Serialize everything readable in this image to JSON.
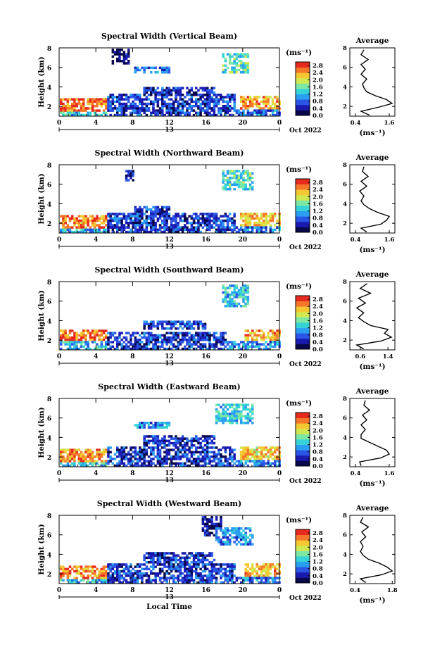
{
  "chart_data": [
    {
      "type": "heatmap",
      "panel_id": "vertical",
      "title": "Spectral Width (Vertical Beam)",
      "ylabel": "Height (km)",
      "y_ticks": [
        "2",
        "4",
        "6",
        "8"
      ],
      "x_ticks": [
        "0",
        "4",
        "8",
        "12",
        "16",
        "20",
        "0"
      ],
      "xlim": [
        0,
        24
      ],
      "ylim": [
        1,
        8
      ],
      "date_marker": "13",
      "date_label": "Oct 2022",
      "colorbar": {
        "unit": "(ms⁻¹)",
        "tick_labels": [
          "2.8",
          "2.4",
          "2.0",
          "1.6",
          "1.2",
          "0.8",
          "0.4",
          "0.0"
        ],
        "range": [
          0,
          3.0
        ],
        "colors": [
          "#08084a",
          "#1a1ab0",
          "#2a55e6",
          "#2a9ef0",
          "#35d2d8",
          "#7de8a4",
          "#d2e850",
          "#f5c832",
          "#f5782a",
          "#e82a1e"
        ]
      },
      "field_regions": [
        {
          "t0": 0,
          "t1": 5.5,
          "h0": 1.5,
          "h1": 3.0,
          "v": 2.6
        },
        {
          "t0": 0,
          "t1": 5,
          "h0": 1.0,
          "h1": 1.6,
          "v": 1.3
        },
        {
          "t0": 5,
          "t1": 19,
          "h0": 1.0,
          "h1": 3.5,
          "v": 0.6
        },
        {
          "t0": 19,
          "t1": 24,
          "h0": 1.0,
          "h1": 1.8,
          "v": 0.8
        },
        {
          "t0": 19.5,
          "t1": 24,
          "h0": 1.8,
          "h1": 3.2,
          "v": 2.4
        },
        {
          "t0": 9,
          "t1": 17,
          "h0": 3.3,
          "h1": 4.2,
          "v": 0.5
        },
        {
          "t0": 5.5,
          "t1": 7.5,
          "h0": 6.5,
          "h1": 8.0,
          "v": 0.25
        },
        {
          "t0": 17.5,
          "t1": 20.5,
          "h0": 5.5,
          "h1": 7.5,
          "v": 1.5
        },
        {
          "t0": 8,
          "t1": 12,
          "h0": 5.5,
          "h1": 6.2,
          "v": 0.8
        }
      ],
      "average_profile": {
        "title": "Average",
        "xlabel": "(ms⁻¹)",
        "x_ticks": [
          "0.4",
          "1.6"
        ],
        "xlim": [
          0.2,
          1.8
        ],
        "y_ticks": [
          "2",
          "4",
          "6",
          "8"
        ],
        "ylim": [
          1,
          8
        ],
        "x": [
          0.9,
          0.6,
          1.2,
          1.7,
          1.5,
          1.1,
          0.8,
          0.7,
          0.65,
          0.8,
          0.6,
          0.75,
          0.6,
          0.85,
          0.6,
          0.7
        ],
        "y": [
          1.1,
          1.5,
          1.9,
          2.3,
          2.7,
          3.1,
          3.5,
          3.9,
          4.3,
          4.8,
          5.3,
          5.8,
          6.3,
          6.8,
          7.3,
          7.8
        ]
      }
    },
    {
      "type": "heatmap",
      "panel_id": "northward",
      "title": "Spectral Width (Northward Beam)",
      "ylabel": "Height (km)",
      "y_ticks": [
        "2",
        "4",
        "6",
        "8"
      ],
      "x_ticks": [
        "0",
        "4",
        "8",
        "12",
        "16",
        "20",
        "0"
      ],
      "xlim": [
        0,
        24
      ],
      "ylim": [
        1,
        8
      ],
      "date_marker": "13",
      "date_label": "Oct 2022",
      "colorbar": {
        "unit": "(ms⁻¹)",
        "tick_labels": [
          "2.8",
          "2.4",
          "2.0",
          "1.6",
          "1.2",
          "0.8",
          "0.4",
          "0.0"
        ],
        "range": [
          0,
          3.0
        ],
        "colors": [
          "#08084a",
          "#1a1ab0",
          "#2a55e6",
          "#2a9ef0",
          "#35d2d8",
          "#7de8a4",
          "#d2e850",
          "#f5c832",
          "#f5782a",
          "#e82a1e"
        ]
      },
      "field_regions": [
        {
          "t0": 0,
          "t1": 5,
          "h0": 1.5,
          "h1": 3.0,
          "v": 2.5
        },
        {
          "t0": 0,
          "t1": 5,
          "h0": 1.0,
          "h1": 1.6,
          "v": 1.2
        },
        {
          "t0": 5,
          "t1": 19,
          "h0": 1.0,
          "h1": 3.3,
          "v": 0.6
        },
        {
          "t0": 19,
          "t1": 24,
          "h0": 1.0,
          "h1": 1.8,
          "v": 0.9
        },
        {
          "t0": 19.5,
          "t1": 24,
          "h0": 1.8,
          "h1": 3.2,
          "v": 2.3
        },
        {
          "t0": 8,
          "t1": 12,
          "h0": 3.3,
          "h1": 4.0,
          "v": 0.6
        },
        {
          "t0": 17.5,
          "t1": 21,
          "h0": 5.5,
          "h1": 7.5,
          "v": 1.4
        },
        {
          "t0": 7,
          "t1": 8,
          "h0": 6.5,
          "h1": 7.5,
          "v": 0.3
        }
      ],
      "average_profile": {
        "title": "Average",
        "xlabel": "(ms⁻¹)",
        "x_ticks": [
          "0.4",
          "1.6"
        ],
        "xlim": [
          0.2,
          1.8
        ],
        "y_ticks": [
          "2",
          "4",
          "6",
          "8"
        ],
        "ylim": [
          1,
          8
        ],
        "x": [
          0.8,
          0.6,
          1.3,
          1.5,
          1.6,
          1.2,
          0.9,
          0.7,
          0.6,
          0.7,
          0.55,
          0.8,
          0.6,
          0.85,
          0.65,
          0.7
        ],
        "y": [
          1.1,
          1.5,
          1.9,
          2.3,
          2.7,
          3.1,
          3.5,
          3.9,
          4.3,
          4.8,
          5.3,
          5.8,
          6.3,
          6.8,
          7.3,
          7.8
        ]
      }
    },
    {
      "type": "heatmap",
      "panel_id": "southward",
      "title": "Spectral Width (Southward Beam)",
      "ylabel": "Height (km)",
      "y_ticks": [
        "2",
        "4",
        "6",
        "8"
      ],
      "x_ticks": [
        "0",
        "4",
        "8",
        "12",
        "16",
        "20",
        "0"
      ],
      "xlim": [
        0,
        24
      ],
      "ylim": [
        1,
        8
      ],
      "date_marker": "13",
      "date_label": "Oct 2022",
      "colorbar": {
        "unit": "(ms⁻¹)",
        "tick_labels": [
          "2.8",
          "2.4",
          "2.0",
          "1.6",
          "1.2",
          "0.8",
          "0.4",
          "0.0"
        ],
        "range": [
          0,
          3.0
        ],
        "colors": [
          "#08084a",
          "#1a1ab0",
          "#2a55e6",
          "#2a9ef0",
          "#35d2d8",
          "#7de8a4",
          "#d2e850",
          "#f5c832",
          "#f5782a",
          "#e82a1e"
        ]
      },
      "field_regions": [
        {
          "t0": 0,
          "t1": 5,
          "h0": 2.0,
          "h1": 3.2,
          "v": 2.6
        },
        {
          "t0": 0,
          "t1": 5,
          "h0": 1.0,
          "h1": 2.0,
          "v": 1.2
        },
        {
          "t0": 5,
          "t1": 18,
          "h0": 1.0,
          "h1": 3.0,
          "v": 0.6
        },
        {
          "t0": 18,
          "t1": 24,
          "h0": 1.0,
          "h1": 2.0,
          "v": 1.0
        },
        {
          "t0": 20,
          "t1": 24,
          "h0": 2.0,
          "h1": 3.2,
          "v": 2.4
        },
        {
          "t0": 9,
          "t1": 16,
          "h0": 3.2,
          "h1": 4.2,
          "v": 0.6
        },
        {
          "t0": 17.5,
          "t1": 20.5,
          "h0": 5.5,
          "h1": 7.8,
          "v": 1.3
        }
      ],
      "average_profile": {
        "title": "Average",
        "xlabel": "(ms⁻¹)",
        "x_ticks": [
          "0.6",
          "1.4"
        ],
        "xlim": [
          0.3,
          1.6
        ],
        "y_ticks": [
          "2",
          "4",
          "6",
          "8"
        ],
        "ylim": [
          1,
          8
        ],
        "x": [
          0.7,
          0.5,
          1.2,
          1.5,
          1.3,
          1.4,
          0.9,
          0.7,
          0.55,
          0.7,
          0.5,
          0.75,
          0.55,
          0.9,
          0.6,
          0.8
        ],
        "y": [
          1.1,
          1.5,
          1.9,
          2.3,
          2.7,
          3.1,
          3.5,
          3.9,
          4.3,
          4.8,
          5.3,
          5.8,
          6.3,
          6.8,
          7.3,
          7.8
        ]
      }
    },
    {
      "type": "heatmap",
      "panel_id": "eastward",
      "title": "Spectral Width (Eastward Beam)",
      "ylabel": "Height (km)",
      "y_ticks": [
        "2",
        "4",
        "6",
        "8"
      ],
      "x_ticks": [
        "0",
        "4",
        "8",
        "12",
        "16",
        "20",
        "0"
      ],
      "xlim": [
        0,
        24
      ],
      "ylim": [
        1,
        8
      ],
      "date_marker": "13",
      "date_label": "Oct 2022",
      "colorbar": {
        "unit": "(ms⁻¹)",
        "tick_labels": [
          "2.8",
          "2.4",
          "2.0",
          "1.6",
          "1.2",
          "0.8",
          "0.4",
          "0.0"
        ],
        "range": [
          0,
          3.0
        ],
        "colors": [
          "#08084a",
          "#1a1ab0",
          "#2a55e6",
          "#2a9ef0",
          "#35d2d8",
          "#7de8a4",
          "#d2e850",
          "#f5c832",
          "#f5782a",
          "#e82a1e"
        ]
      },
      "field_regions": [
        {
          "t0": 0,
          "t1": 5,
          "h0": 1.5,
          "h1": 3.0,
          "v": 2.4
        },
        {
          "t0": 0,
          "t1": 5,
          "h0": 1.0,
          "h1": 1.6,
          "v": 1.3
        },
        {
          "t0": 5,
          "t1": 19,
          "h0": 1.0,
          "h1": 3.3,
          "v": 0.6
        },
        {
          "t0": 19,
          "t1": 24,
          "h0": 1.0,
          "h1": 1.8,
          "v": 0.9
        },
        {
          "t0": 19.5,
          "t1": 24,
          "h0": 1.8,
          "h1": 3.2,
          "v": 2.2
        },
        {
          "t0": 9,
          "t1": 17,
          "h0": 3.3,
          "h1": 4.3,
          "v": 0.55
        },
        {
          "t0": 17,
          "t1": 21,
          "h0": 5.5,
          "h1": 7.5,
          "v": 1.3
        },
        {
          "t0": 8,
          "t1": 12,
          "h0": 5.0,
          "h1": 5.8,
          "v": 1.0
        }
      ],
      "average_profile": {
        "title": "Average",
        "xlabel": "(ms⁻¹)",
        "x_ticks": [
          "0.4",
          "1.6"
        ],
        "xlim": [
          0.2,
          1.8
        ],
        "y_ticks": [
          "2",
          "4",
          "6",
          "8"
        ],
        "ylim": [
          1,
          8
        ],
        "x": [
          0.6,
          0.55,
          1.3,
          1.6,
          1.5,
          1.2,
          0.9,
          0.6,
          0.6,
          0.75,
          0.6,
          0.8,
          0.65,
          0.9,
          0.7,
          0.75
        ],
        "y": [
          1.1,
          1.5,
          1.9,
          2.3,
          2.7,
          3.1,
          3.5,
          3.9,
          4.3,
          4.8,
          5.3,
          5.8,
          6.3,
          6.8,
          7.3,
          7.8
        ]
      }
    },
    {
      "type": "heatmap",
      "panel_id": "westward",
      "title": "Spectral Width (Westward Beam)",
      "ylabel": "Height (km)",
      "y_ticks": [
        "2",
        "4",
        "6",
        "8"
      ],
      "x_ticks": [
        "0",
        "4",
        "8",
        "12",
        "16",
        "20",
        "0"
      ],
      "xlim": [
        0,
        24
      ],
      "ylim": [
        1,
        8
      ],
      "date_marker": "13",
      "date_label": "Oct 2022",
      "xlabel": "Local Time",
      "colorbar": {
        "unit": "(ms⁻¹)",
        "tick_labels": [
          "2.8",
          "2.4",
          "2.0",
          "1.6",
          "1.2",
          "0.8",
          "0.4",
          "0.0"
        ],
        "range": [
          0,
          3.0
        ],
        "colors": [
          "#08084a",
          "#1a1ab0",
          "#2a55e6",
          "#2a9ef0",
          "#35d2d8",
          "#7de8a4",
          "#d2e850",
          "#f5c832",
          "#f5782a",
          "#e82a1e"
        ]
      },
      "field_regions": [
        {
          "t0": 0,
          "t1": 5,
          "h0": 1.5,
          "h1": 3.0,
          "v": 2.5
        },
        {
          "t0": 0,
          "t1": 5,
          "h0": 1.0,
          "h1": 1.6,
          "v": 1.2
        },
        {
          "t0": 5,
          "t1": 19,
          "h0": 1.0,
          "h1": 3.3,
          "v": 0.6
        },
        {
          "t0": 19,
          "t1": 24,
          "h0": 1.0,
          "h1": 1.8,
          "v": 0.9
        },
        {
          "t0": 20,
          "t1": 24,
          "h0": 1.8,
          "h1": 3.2,
          "v": 2.3
        },
        {
          "t0": 9,
          "t1": 17,
          "h0": 3.3,
          "h1": 4.3,
          "v": 0.55
        },
        {
          "t0": 15.5,
          "t1": 17.5,
          "h0": 6.0,
          "h1": 8.0,
          "v": 0.3
        },
        {
          "t0": 17,
          "t1": 21,
          "h0": 5.0,
          "h1": 7.0,
          "v": 1.0
        }
      ],
      "average_profile": {
        "title": "Average",
        "xlabel": "(ms⁻¹)",
        "x_ticks": [
          "0.4",
          "1.8"
        ],
        "xlim": [
          0.2,
          1.9
        ],
        "y_ticks": [
          "2",
          "4",
          "6",
          "8"
        ],
        "ylim": [
          1,
          8
        ],
        "x": [
          0.8,
          0.6,
          1.4,
          1.8,
          1.6,
          1.3,
          0.9,
          0.7,
          0.6,
          0.7,
          0.6,
          0.8,
          0.65,
          0.9,
          0.6,
          0.7
        ],
        "y": [
          1.1,
          1.5,
          1.9,
          2.3,
          2.7,
          3.1,
          3.5,
          3.9,
          4.3,
          4.8,
          5.3,
          5.8,
          6.3,
          6.8,
          7.3,
          7.8
        ]
      }
    }
  ]
}
